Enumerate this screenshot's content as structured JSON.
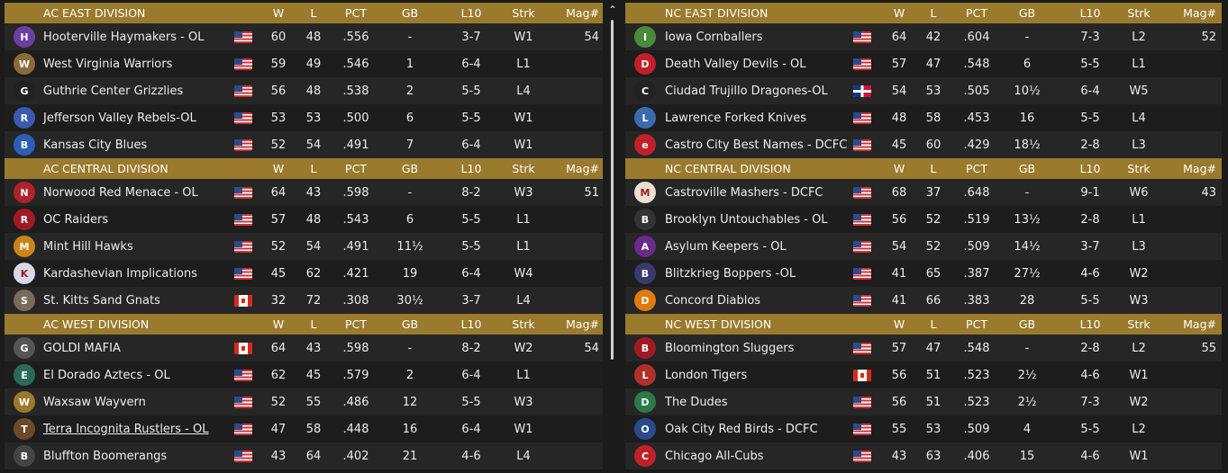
{
  "headers": {
    "w": "W",
    "l": "L",
    "pct": "PCT",
    "gb": "GB",
    "l10": "L10",
    "strk": "Strk",
    "mag": "Mag#"
  },
  "left": [
    {
      "name": "AC EAST DIVISION",
      "mag": "54",
      "teams": [
        {
          "team": "Hooterville Haymakers - OL",
          "flag": "us",
          "w": "60",
          "l": "48",
          "pct": ".556",
          "gb": "-",
          "l10": "3-7",
          "strk": "W1",
          "logo_color": "#6b3fa0",
          "logo_glyph": "H"
        },
        {
          "team": "West Virginia Warriors",
          "flag": "us",
          "w": "59",
          "l": "49",
          "pct": ".546",
          "gb": "1",
          "l10": "6-4",
          "strk": "L1",
          "logo_color": "#8a6a3a",
          "logo_glyph": "W"
        },
        {
          "team": "Guthrie Center Grizzlies",
          "flag": "us",
          "w": "56",
          "l": "48",
          "pct": ".538",
          "gb": "2",
          "l10": "5-5",
          "strk": "L4",
          "logo_color": "#222222",
          "logo_glyph": "G"
        },
        {
          "team": "Jefferson Valley Rebels-OL",
          "flag": "us",
          "w": "53",
          "l": "53",
          "pct": ".500",
          "gb": "6",
          "l10": "5-5",
          "strk": "W1",
          "logo_color": "#3a5ab0",
          "logo_glyph": "R"
        },
        {
          "team": "Kansas City Blues",
          "flag": "us",
          "w": "52",
          "l": "54",
          "pct": ".491",
          "gb": "7",
          "l10": "6-4",
          "strk": "W1",
          "logo_color": "#2a5fb8",
          "logo_glyph": "B"
        }
      ]
    },
    {
      "name": "AC CENTRAL DIVISION",
      "mag": "51",
      "teams": [
        {
          "team": "Norwood Red Menace - OL",
          "flag": "us",
          "w": "64",
          "l": "43",
          "pct": ".598",
          "gb": "-",
          "l10": "8-2",
          "strk": "W3",
          "logo_color": "#b0202a",
          "logo_glyph": "N"
        },
        {
          "team": "OC Raiders",
          "flag": "us",
          "w": "57",
          "l": "48",
          "pct": ".543",
          "gb": "6",
          "l10": "5-5",
          "strk": "L1",
          "logo_color": "#a01a24",
          "logo_glyph": "R"
        },
        {
          "team": "Mint Hill Hawks",
          "flag": "us",
          "w": "52",
          "l": "54",
          "pct": ".491",
          "gb": "11½",
          "l10": "5-5",
          "strk": "L1",
          "logo_color": "#c8861a",
          "logo_glyph": "M"
        },
        {
          "team": "Kardashevian Implications",
          "flag": "us",
          "w": "45",
          "l": "62",
          "pct": ".421",
          "gb": "19",
          "l10": "6-4",
          "strk": "W4",
          "logo_color": "#d8d8e8",
          "logo_glyph": "K"
        },
        {
          "team": "St. Kitts Sand Gnats",
          "flag": "ca",
          "w": "32",
          "l": "72",
          "pct": ".308",
          "gb": "30½",
          "l10": "3-7",
          "strk": "L4",
          "logo_color": "#7a6a5a",
          "logo_glyph": "S"
        }
      ]
    },
    {
      "name": "AC WEST DIVISION",
      "mag": "54",
      "teams": [
        {
          "team": "GOLDI MAFIA",
          "flag": "ca",
          "w": "64",
          "l": "43",
          "pct": ".598",
          "gb": "-",
          "l10": "8-2",
          "strk": "W2",
          "logo_color": "#555555",
          "logo_glyph": "G"
        },
        {
          "team": "El Dorado Aztecs - OL",
          "flag": "us",
          "w": "62",
          "l": "45",
          "pct": ".579",
          "gb": "2",
          "l10": "6-4",
          "strk": "L1",
          "logo_color": "#2c6a5a",
          "logo_glyph": "E"
        },
        {
          "team": "Waxsaw Wayvern",
          "flag": "us",
          "w": "52",
          "l": "55",
          "pct": ".486",
          "gb": "12",
          "l10": "5-5",
          "strk": "W3",
          "logo_color": "#9a7a2c",
          "logo_glyph": "W"
        },
        {
          "team": "Terra Incognita Rustlers - OL",
          "flag": "us",
          "w": "47",
          "l": "58",
          "pct": ".448",
          "gb": "16",
          "l10": "6-4",
          "strk": "W1",
          "logo_color": "#6a4a2a",
          "logo_glyph": "T",
          "link": true
        },
        {
          "team": "Bluffton Boomerangs",
          "flag": "us",
          "w": "43",
          "l": "64",
          "pct": ".402",
          "gb": "21",
          "l10": "4-6",
          "strk": "L4",
          "logo_color": "#444444",
          "logo_glyph": "B"
        }
      ]
    }
  ],
  "right": [
    {
      "name": "NC EAST DIVISION",
      "mag": "52",
      "teams": [
        {
          "team": "Iowa Cornballers",
          "flag": "us",
          "w": "64",
          "l": "42",
          "pct": ".604",
          "gb": "-",
          "l10": "7-3",
          "strk": "L2",
          "logo_color": "#4a8a3a",
          "logo_glyph": "I"
        },
        {
          "team": "Death Valley Devils - OL",
          "flag": "us",
          "w": "57",
          "l": "47",
          "pct": ".548",
          "gb": "6",
          "l10": "5-5",
          "strk": "L1",
          "logo_color": "#c0202a",
          "logo_glyph": "D"
        },
        {
          "team": "Ciudad Trujillo Dragones-OL",
          "flag": "do",
          "w": "54",
          "l": "53",
          "pct": ".505",
          "gb": "10½",
          "l10": "6-4",
          "strk": "W5",
          "logo_color": "#222222",
          "logo_glyph": "C"
        },
        {
          "team": "Lawrence Forked Knives",
          "flag": "us",
          "w": "48",
          "l": "58",
          "pct": ".453",
          "gb": "16",
          "l10": "5-5",
          "strk": "L4",
          "logo_color": "#3a6ab0",
          "logo_glyph": "L"
        },
        {
          "team": "Castro City Best Names - DCFC",
          "flag": "us",
          "w": "45",
          "l": "60",
          "pct": ".429",
          "gb": "18½",
          "l10": "2-8",
          "strk": "L3",
          "logo_color": "#c0202a",
          "logo_glyph": "e"
        }
      ]
    },
    {
      "name": "NC CENTRAL DIVISION",
      "mag": "43",
      "teams": [
        {
          "team": "Castroville Mashers - DCFC",
          "flag": "us",
          "w": "68",
          "l": "37",
          "pct": ".648",
          "gb": "-",
          "l10": "9-1",
          "strk": "W6",
          "logo_color": "#e8e0d0",
          "logo_glyph": "M"
        },
        {
          "team": "Brooklyn Untouchables - OL",
          "flag": "us",
          "w": "56",
          "l": "52",
          "pct": ".519",
          "gb": "13½",
          "l10": "2-8",
          "strk": "L1",
          "logo_color": "#333333",
          "logo_glyph": "B"
        },
        {
          "team": "Asylum Keepers - OL",
          "flag": "us",
          "w": "54",
          "l": "52",
          "pct": ".509",
          "gb": "14½",
          "l10": "3-7",
          "strk": "L3",
          "logo_color": "#6a2a8a",
          "logo_glyph": "A"
        },
        {
          "team": "Blitzkrieg Boppers -OL",
          "flag": "us",
          "w": "41",
          "l": "65",
          "pct": ".387",
          "gb": "27½",
          "l10": "4-6",
          "strk": "W2",
          "logo_color": "#3a3a6a",
          "logo_glyph": "B"
        },
        {
          "team": "Concord Diablos",
          "flag": "us",
          "w": "41",
          "l": "66",
          "pct": ".383",
          "gb": "28",
          "l10": "5-5",
          "strk": "W3",
          "logo_color": "#e07a10",
          "logo_glyph": "D"
        }
      ]
    },
    {
      "name": "NC WEST DIVISION",
      "mag": "55",
      "teams": [
        {
          "team": "Bloomington Sluggers",
          "flag": "us",
          "w": "57",
          "l": "47",
          "pct": ".548",
          "gb": "-",
          "l10": "2-8",
          "strk": "L2",
          "logo_color": "#a01a24",
          "logo_glyph": "B"
        },
        {
          "team": "London Tigers",
          "flag": "ca",
          "w": "56",
          "l": "51",
          "pct": ".523",
          "gb": "2½",
          "l10": "4-6",
          "strk": "W1",
          "logo_color": "#b0302a",
          "logo_glyph": "L"
        },
        {
          "team": "The Dudes",
          "flag": "us",
          "w": "56",
          "l": "51",
          "pct": ".523",
          "gb": "2½",
          "l10": "7-3",
          "strk": "W2",
          "logo_color": "#2a7a4a",
          "logo_glyph": "D"
        },
        {
          "team": "Oak City Red Birds - DCFC",
          "flag": "us",
          "w": "55",
          "l": "53",
          "pct": ".509",
          "gb": "4",
          "l10": "5-5",
          "strk": "L2",
          "logo_color": "#2a4a8a",
          "logo_glyph": "O"
        },
        {
          "team": "Chicago All-Cubs",
          "flag": "us",
          "w": "43",
          "l": "63",
          "pct": ".406",
          "gb": "15",
          "l10": "4-6",
          "strk": "W1",
          "logo_color": "#c0202a",
          "logo_glyph": "C"
        }
      ]
    }
  ],
  "scrollbar": {
    "up_glyph": "⌃"
  }
}
